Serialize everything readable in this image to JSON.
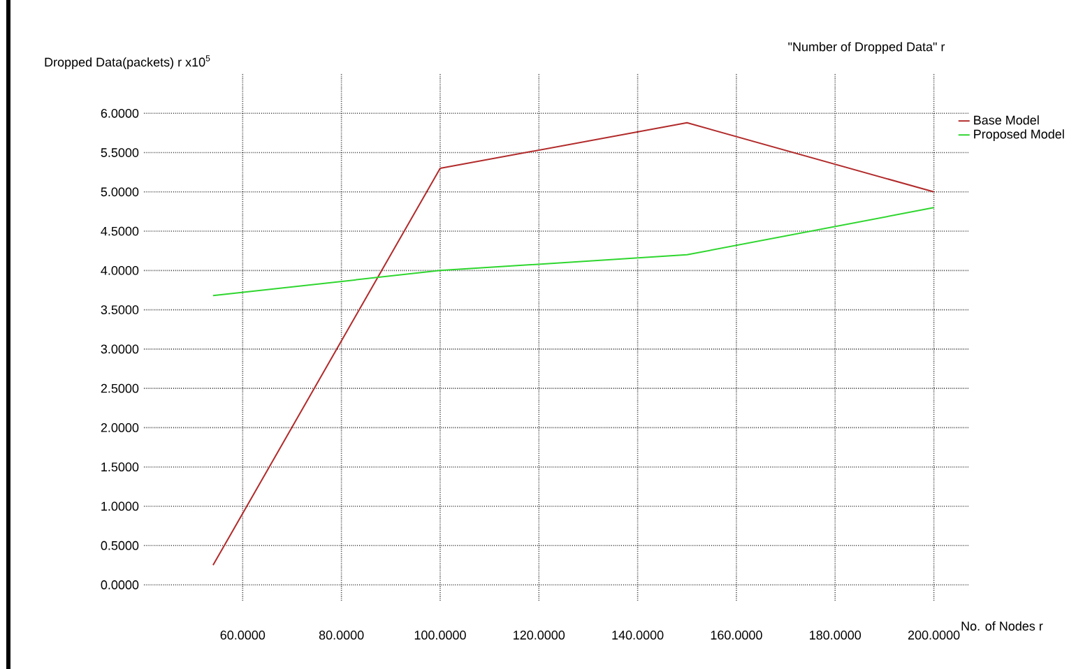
{
  "chart_data": {
    "type": "line",
    "title": "\"Number of Dropped Data\" r",
    "xlabel": "No. of Nodes r",
    "ylabel": "Dropped Data(packets) r x10$^{5}$",
    "x": [
      54,
      100,
      150,
      200
    ],
    "series": [
      {
        "name": "Base Model",
        "color": "#b22a2a",
        "values": [
          0.25,
          5.3,
          5.88,
          5.0
        ]
      },
      {
        "name": "Proposed Model",
        "color": "#2ed62e",
        "values": [
          3.68,
          4.0,
          4.2,
          4.8
        ]
      }
    ],
    "xlim": [
      40,
      207
    ],
    "ylim": [
      -0.2,
      6.5
    ],
    "xticks": [
      {
        "value": 60,
        "label": "60.0000"
      },
      {
        "value": 80,
        "label": "80.0000"
      },
      {
        "value": 100,
        "label": "100.0000"
      },
      {
        "value": 120,
        "label": "120.0000"
      },
      {
        "value": 140,
        "label": "140.0000"
      },
      {
        "value": 160,
        "label": "160.0000"
      },
      {
        "value": 180,
        "label": "180.0000"
      },
      {
        "value": 200,
        "label": "200.0000"
      }
    ],
    "yticks": [
      {
        "value": 0,
        "label": "0.0000"
      },
      {
        "value": 0.5,
        "label": "0.5000"
      },
      {
        "value": 1,
        "label": "1.0000"
      },
      {
        "value": 1.5,
        "label": "1.5000"
      },
      {
        "value": 2,
        "label": "2.0000"
      },
      {
        "value": 2.5,
        "label": "2.5000"
      },
      {
        "value": 3,
        "label": "3.0000"
      },
      {
        "value": 3.5,
        "label": "3.5000"
      },
      {
        "value": 4,
        "label": "4.0000"
      },
      {
        "value": 4.5,
        "label": "4.5000"
      },
      {
        "value": 5,
        "label": "5.0000"
      },
      {
        "value": 5.5,
        "label": "5.5000"
      },
      {
        "value": 6,
        "label": "6.0000"
      }
    ],
    "grid": true,
    "legend": "top right",
    "marker": "none",
    "line_style": "solid"
  }
}
